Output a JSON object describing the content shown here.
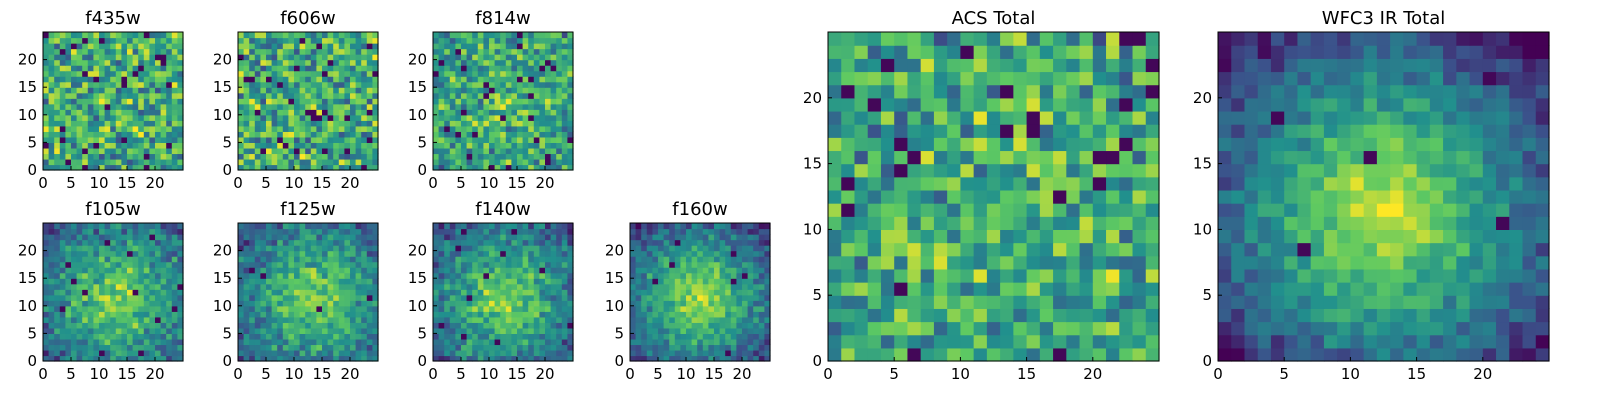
{
  "figure": {
    "background": "#ffffff"
  },
  "colormap": [
    "#440154",
    "#3b528b",
    "#21908d",
    "#5dc962",
    "#fde725"
  ],
  "chart_data": [
    {
      "type": "heatmap",
      "title": "f435w",
      "grid": [
        25,
        25
      ],
      "seed": 11,
      "smooth": 0.0,
      "xticks": [
        "0",
        "5",
        "10",
        "15",
        "20"
      ],
      "yticks": [
        "0",
        "5",
        "10",
        "15",
        "20"
      ],
      "xlim": [
        0,
        25
      ],
      "ylim": [
        0,
        25
      ]
    },
    {
      "type": "heatmap",
      "title": "f606w",
      "grid": [
        25,
        25
      ],
      "seed": 23,
      "smooth": 0.0,
      "xticks": [
        "0",
        "5",
        "10",
        "15",
        "20"
      ],
      "yticks": [
        "0",
        "5",
        "10",
        "15",
        "20"
      ],
      "xlim": [
        0,
        25
      ],
      "ylim": [
        0,
        25
      ]
    },
    {
      "type": "heatmap",
      "title": "f814w",
      "grid": [
        25,
        25
      ],
      "seed": 37,
      "smooth": 0.15,
      "xticks": [
        "0",
        "5",
        "10",
        "15",
        "20"
      ],
      "yticks": [
        "0",
        "5",
        "10",
        "15",
        "20"
      ],
      "xlim": [
        0,
        25
      ],
      "ylim": [
        0,
        25
      ]
    },
    {
      "type": "heatmap",
      "title": "f105w",
      "grid": [
        25,
        25
      ],
      "seed": 41,
      "smooth": 0.55,
      "xticks": [
        "0",
        "5",
        "10",
        "15",
        "20"
      ],
      "yticks": [
        "0",
        "5",
        "10",
        "15",
        "20"
      ],
      "xlim": [
        0,
        25
      ],
      "ylim": [
        0,
        25
      ]
    },
    {
      "type": "heatmap",
      "title": "f125w",
      "grid": [
        25,
        25
      ],
      "seed": 53,
      "smooth": 0.55,
      "xticks": [
        "0",
        "5",
        "10",
        "15",
        "20"
      ],
      "yticks": [
        "0",
        "5",
        "10",
        "15",
        "20"
      ],
      "xlim": [
        0,
        25
      ],
      "ylim": [
        0,
        25
      ]
    },
    {
      "type": "heatmap",
      "title": "f140w",
      "grid": [
        25,
        25
      ],
      "seed": 67,
      "smooth": 0.6,
      "xticks": [
        "0",
        "5",
        "10",
        "15",
        "20"
      ],
      "yticks": [
        "0",
        "5",
        "10",
        "15",
        "20"
      ],
      "xlim": [
        0,
        25
      ],
      "ylim": [
        0,
        25
      ]
    },
    {
      "type": "heatmap",
      "title": "f160w",
      "grid": [
        25,
        25
      ],
      "seed": 79,
      "smooth": 0.7,
      "xticks": [
        "0",
        "5",
        "10",
        "15",
        "20"
      ],
      "yticks": [
        "0",
        "5",
        "10",
        "15",
        "20"
      ],
      "xlim": [
        0,
        25
      ],
      "ylim": [
        0,
        25
      ]
    },
    {
      "type": "heatmap",
      "title": "ACS Total",
      "grid": [
        25,
        25
      ],
      "seed": 89,
      "smooth": 0.1,
      "xticks": [
        "0",
        "5",
        "10",
        "15",
        "20"
      ],
      "yticks": [
        "0",
        "5",
        "10",
        "15",
        "20"
      ],
      "xlim": [
        0,
        25
      ],
      "ylim": [
        0,
        25
      ]
    },
    {
      "type": "heatmap",
      "title": "WFC3 IR Total",
      "grid": [
        25,
        25
      ],
      "seed": 97,
      "smooth": 0.9,
      "xticks": [
        "0",
        "5",
        "10",
        "15",
        "20"
      ],
      "yticks": [
        "0",
        "5",
        "10",
        "15",
        "20"
      ],
      "xlim": [
        0,
        25
      ],
      "ylim": [
        0,
        25
      ]
    }
  ]
}
